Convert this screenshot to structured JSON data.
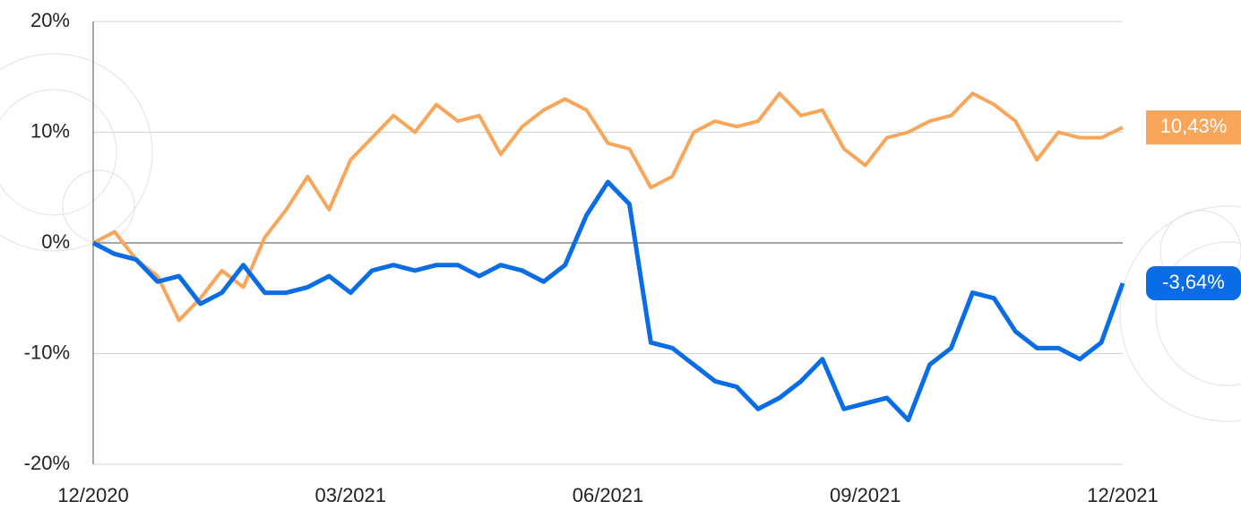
{
  "chart_data": {
    "type": "line",
    "categories": [
      "12/2020",
      null,
      null,
      null,
      null,
      null,
      null,
      null,
      null,
      null,
      null,
      null,
      "03/2021",
      null,
      null,
      null,
      null,
      null,
      null,
      null,
      null,
      null,
      null,
      null,
      "06/2021",
      null,
      null,
      null,
      null,
      null,
      null,
      null,
      null,
      null,
      null,
      null,
      "09/2021",
      null,
      null,
      null,
      null,
      null,
      null,
      null,
      null,
      null,
      null,
      null,
      "12/2021"
    ],
    "series": [
      {
        "color": "#f9a55a",
        "values": [
          0,
          1,
          -1.5,
          -3,
          -7,
          -5,
          -2.5,
          -4,
          0.5,
          3,
          6,
          3,
          7.5,
          9.5,
          11.5,
          10,
          12.5,
          11,
          11.5,
          8,
          10.5,
          12,
          13,
          12,
          9,
          8.5,
          5,
          6,
          10,
          11,
          10.5,
          11,
          13.5,
          11.5,
          12,
          8.5,
          7,
          9.5,
          10,
          11,
          11.5,
          13.5,
          12.5,
          11,
          7.5,
          10,
          9.5,
          9.5,
          10.43
        ],
        "value_labels": [
          null,
          null,
          null,
          null,
          null,
          null,
          null,
          null,
          null,
          null,
          null,
          null,
          null,
          null,
          null,
          null,
          null,
          null,
          null,
          null,
          null,
          null,
          null,
          null,
          null,
          null,
          null,
          null,
          null,
          null,
          null,
          null,
          null,
          null,
          null,
          null,
          null,
          null,
          null,
          null,
          null,
          null,
          null,
          null,
          null,
          null,
          null,
          null,
          "10,43%"
        ]
      },
      {
        "color": "#0a6de6",
        "values": [
          0,
          -1,
          -1.5,
          -3.5,
          -3,
          -5.5,
          -4.5,
          -2,
          -4.5,
          -4.5,
          -4,
          -3,
          -4.5,
          -2.5,
          -2,
          -2.5,
          -2,
          -2,
          -3,
          -2,
          -2.5,
          -3.5,
          -2,
          2.5,
          5.5,
          3.5,
          -9,
          -9.5,
          -11,
          -12.5,
          -13,
          -15,
          -14,
          -12.5,
          -10.5,
          -15,
          -14.5,
          -14,
          -16,
          -11,
          -9.5,
          -4.5,
          -5,
          -8,
          -9.5,
          -9.5,
          -10.5,
          -9,
          -3.64
        ],
        "value_labels": [
          null,
          null,
          null,
          null,
          null,
          null,
          null,
          null,
          null,
          null,
          null,
          null,
          null,
          null,
          null,
          null,
          null,
          null,
          null,
          null,
          null,
          null,
          null,
          null,
          null,
          null,
          null,
          null,
          null,
          null,
          null,
          null,
          null,
          null,
          null,
          null,
          null,
          null,
          null,
          null,
          null,
          null,
          null,
          null,
          null,
          null,
          null,
          null,
          "-3,64%"
        ]
      }
    ],
    "ylim": [
      -20,
      20
    ],
    "yticks": [
      {
        "value": -20,
        "label": "-20%"
      },
      {
        "value": -10,
        "label": "-10%"
      },
      {
        "value": 0,
        "label": "0%"
      },
      {
        "value": 10,
        "label": "10%"
      },
      {
        "value": 20,
        "label": "20%"
      }
    ],
    "grid": true
  }
}
